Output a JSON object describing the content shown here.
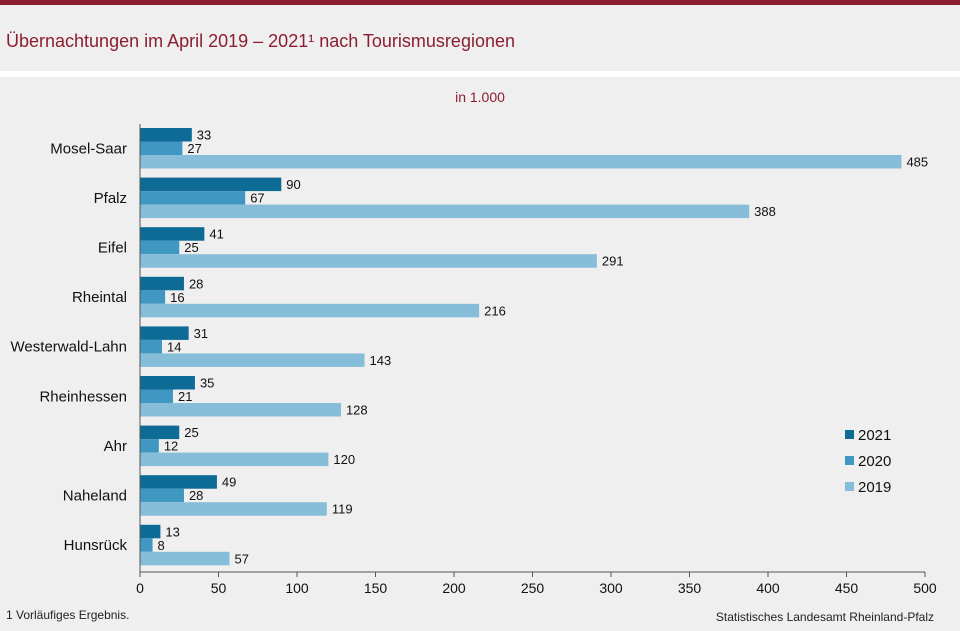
{
  "header": {
    "title": "Übernachtungen im April 2019 – 2021¹ nach Tourismusregionen"
  },
  "colors": {
    "brand": "#8c1e32",
    "series_2021": "#0d6b96",
    "series_2020": "#3f97c2",
    "series_2019": "#86bdd8"
  },
  "chart_data": {
    "type": "bar",
    "orientation": "horizontal",
    "subtitle": "in 1.000",
    "categories": [
      "Mosel-Saar",
      "Pfalz",
      "Eifel",
      "Rheintal",
      "Westerwald-Lahn",
      "Rheinhessen",
      "Ahr",
      "Naheland",
      "Hunsrück"
    ],
    "series": [
      {
        "name": "2021",
        "values": [
          33,
          90,
          41,
          28,
          31,
          35,
          25,
          49,
          13
        ]
      },
      {
        "name": "2020",
        "values": [
          27,
          67,
          25,
          16,
          14,
          21,
          12,
          28,
          8
        ]
      },
      {
        "name": "2019",
        "values": [
          485,
          388,
          291,
          216,
          143,
          128,
          120,
          119,
          57
        ]
      }
    ],
    "xlim": [
      0,
      500
    ],
    "xticks": [
      0,
      50,
      100,
      150,
      200,
      250,
      300,
      350,
      400,
      450,
      500
    ],
    "grid": false,
    "legend_position": "right"
  },
  "footer": {
    "footnote": "1 Vorläufiges Ergebnis.",
    "source": "Statistisches Landesamt Rheinland-Pfalz"
  }
}
